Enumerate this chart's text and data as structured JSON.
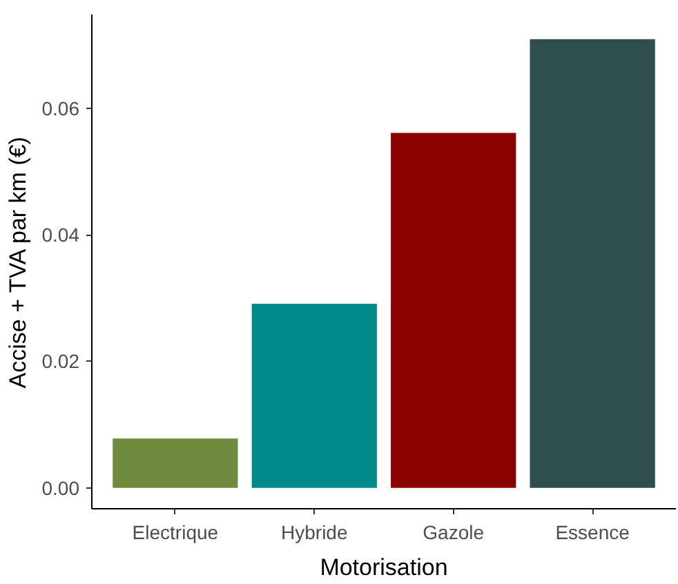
{
  "chart_data": {
    "type": "bar",
    "xlabel": "Motorisation",
    "ylabel": "Accise + TVA par km (€)",
    "categories": [
      "Electrique",
      "Hybride",
      "Gazole",
      "Essence"
    ],
    "values": [
      0.0078,
      0.0291,
      0.0561,
      0.0709
    ],
    "colors": [
      "#6e8b3d",
      "#008b8b",
      "#8b0000",
      "#2f4f4f"
    ],
    "ylim": [
      -0.0033,
      0.0748
    ],
    "yticks": [
      {
        "value": 0,
        "label": "0.00"
      },
      {
        "value": 0.02,
        "label": "0.02"
      },
      {
        "value": 0.04,
        "label": "0.04"
      },
      {
        "value": 0.06,
        "label": "0.06"
      }
    ],
    "grid": false
  }
}
